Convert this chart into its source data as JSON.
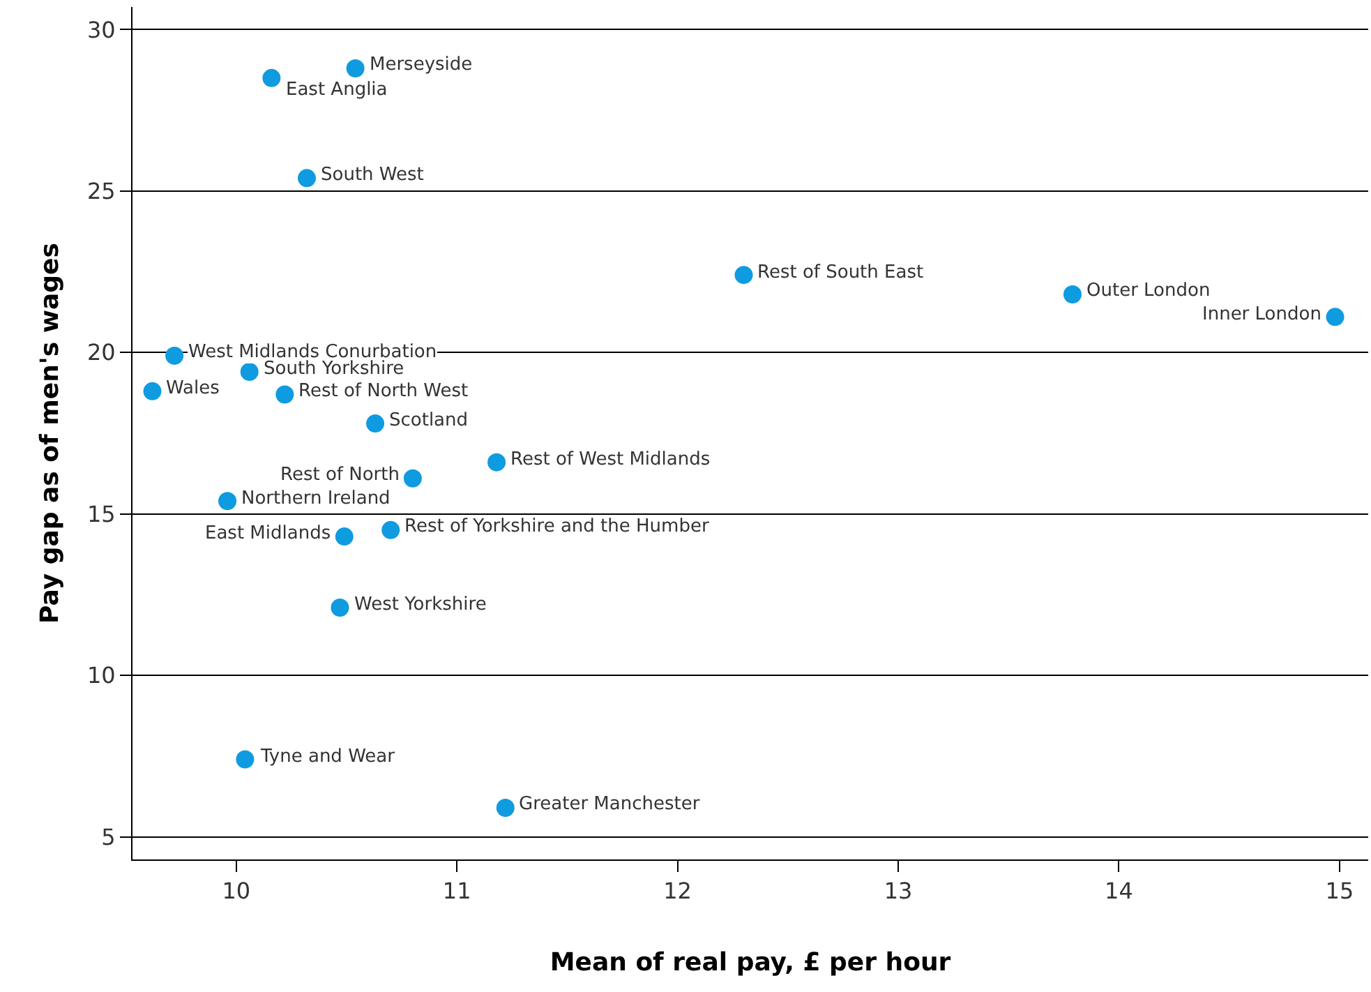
{
  "chart_data": {
    "type": "scatter",
    "xlabel": "Mean of real pay, £ per hour",
    "ylabel": "Pay gap as of men's wages",
    "x": [
      10.54,
      10.16,
      10.32,
      12.3,
      13.79,
      14.98,
      9.72,
      9.62,
      10.06,
      10.22,
      10.63,
      11.18,
      10.8,
      9.96,
      10.49,
      10.7,
      10.47,
      10.04,
      11.22
    ],
    "series": [
      {
        "color": "#0f9be0",
        "values": [
          28.8,
          28.5,
          25.4,
          22.4,
          21.8,
          21.1,
          19.9,
          18.8,
          19.4,
          18.7,
          17.8,
          16.6,
          16.1,
          15.4,
          14.3,
          14.5,
          12.1,
          7.4,
          5.9
        ]
      }
    ],
    "annotations": [
      {
        "text": "Merseyside",
        "x": 10.54,
        "y": 28.8
      },
      {
        "text": "East Anglia",
        "x": 10.16,
        "y": 28.5
      },
      {
        "text": "South West",
        "x": 10.32,
        "y": 25.4
      },
      {
        "text": "Rest of South East",
        "x": 12.3,
        "y": 22.4
      },
      {
        "text": "Outer London",
        "x": 13.79,
        "y": 21.8
      },
      {
        "text": "Inner London",
        "x": 14.98,
        "y": 21.1
      },
      {
        "text": "West Midlands Conurbation",
        "x": 9.72,
        "y": 19.9
      },
      {
        "text": "Wales",
        "x": 9.62,
        "y": 18.8
      },
      {
        "text": "South Yorkshire",
        "x": 10.06,
        "y": 19.4
      },
      {
        "text": "Rest of North West",
        "x": 10.22,
        "y": 18.7
      },
      {
        "text": "Scotland",
        "x": 10.63,
        "y": 17.8
      },
      {
        "text": "Rest of West Midlands",
        "x": 11.18,
        "y": 16.6
      },
      {
        "text": "Rest of North",
        "x": 10.8,
        "y": 16.1
      },
      {
        "text": "Northern Ireland",
        "x": 9.96,
        "y": 15.4
      },
      {
        "text": "East Midlands",
        "x": 10.49,
        "y": 14.3
      },
      {
        "text": "Rest of Yorkshire and the Humber",
        "x": 10.7,
        "y": 14.5
      },
      {
        "text": "West Yorkshire",
        "x": 10.47,
        "y": 12.1
      },
      {
        "text": "Tyne and Wear",
        "x": 10.04,
        "y": 7.4
      },
      {
        "text": "Greater Manchester",
        "x": 11.22,
        "y": 5.9
      }
    ],
    "xlim": [
      9.53,
      15.13
    ],
    "ylim": [
      4.3,
      30.7
    ],
    "xticks": [
      10,
      11,
      12,
      13,
      14,
      15
    ],
    "yticks": [
      5,
      10,
      15,
      20,
      25,
      30
    ],
    "grid": "y",
    "marker": "circle"
  }
}
